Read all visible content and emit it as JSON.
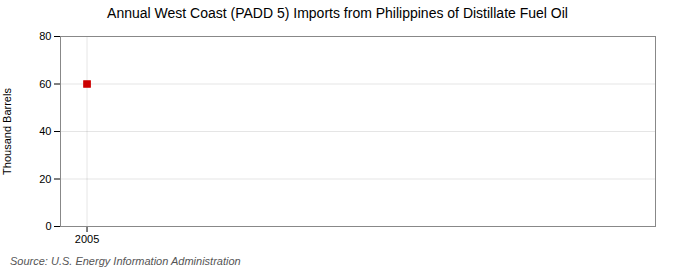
{
  "chart_data": {
    "type": "scatter",
    "title": "Annual West Coast (PADD 5) Imports from Philippines of Distillate Fuel Oil",
    "ylabel": "Thousand Barrels",
    "source": "Source: U.S. Energy Information Administration",
    "x": [
      2005
    ],
    "values": [
      60
    ],
    "color": "#cc0000",
    "marker": "square",
    "xlim": [
      2004.3,
      2020
    ],
    "ylim": [
      0,
      80
    ],
    "xticks": [
      2005
    ],
    "yticks": [
      0,
      20,
      40,
      60,
      80
    ],
    "grid": true
  }
}
